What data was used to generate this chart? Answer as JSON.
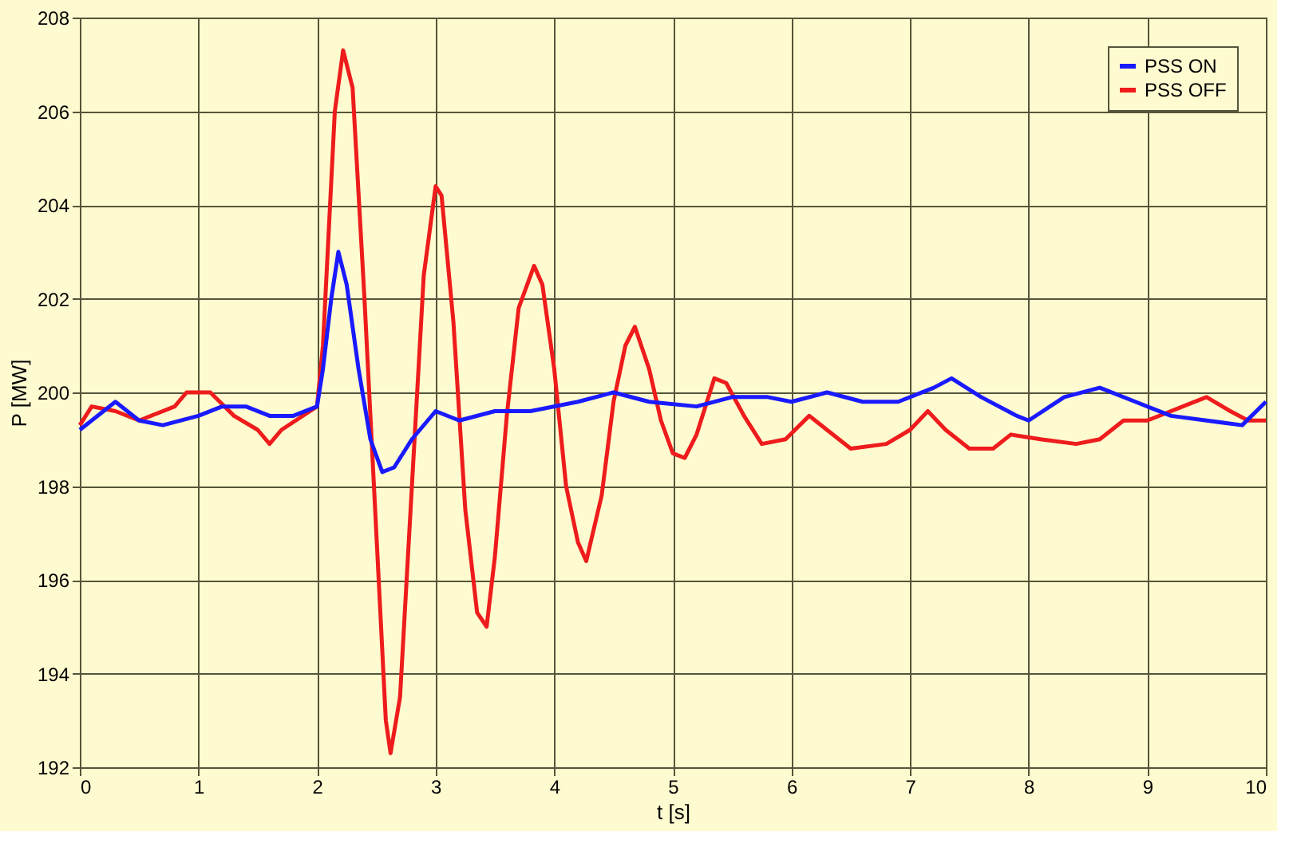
{
  "chart_data": {
    "type": "line",
    "xlabel": "t [s]",
    "ylabel": "P  [MW]",
    "xlim": [
      0,
      10
    ],
    "xticks": [
      0,
      1,
      2,
      3,
      4,
      5,
      6,
      7,
      8,
      9,
      10
    ],
    "ylim": [
      192,
      208
    ],
    "yticks": [
      192,
      194,
      196,
      198,
      200,
      202,
      204,
      206,
      208
    ],
    "grid": true,
    "legend": "top right",
    "line_style": "solid",
    "series": [
      {
        "name": "PSS ON",
        "color": "#1a1aff",
        "x": [
          0,
          0.2,
          0.3,
          0.5,
          0.7,
          1.0,
          1.2,
          1.4,
          1.6,
          1.8,
          2.0,
          2.05,
          2.12,
          2.18,
          2.25,
          2.35,
          2.45,
          2.55,
          2.65,
          2.8,
          3.0,
          3.2,
          3.5,
          3.8,
          4.2,
          4.5,
          4.8,
          5.2,
          5.5,
          5.8,
          6.0,
          6.3,
          6.6,
          6.9,
          7.2,
          7.35,
          7.6,
          7.9,
          8.0,
          8.3,
          8.6,
          8.9,
          9.2,
          9.5,
          9.8,
          10
        ],
        "values": [
          199.2,
          199.6,
          199.8,
          199.4,
          199.3,
          199.5,
          199.7,
          199.7,
          199.5,
          199.5,
          199.7,
          200.5,
          202.0,
          203.0,
          202.3,
          200.5,
          199.0,
          198.3,
          198.4,
          199.0,
          199.6,
          199.4,
          199.6,
          199.6,
          199.8,
          200.0,
          199.8,
          199.7,
          199.9,
          199.9,
          199.8,
          200.0,
          199.8,
          199.8,
          200.1,
          200.3,
          199.9,
          199.5,
          199.4,
          199.9,
          200.1,
          199.8,
          199.5,
          199.4,
          199.3,
          199.8
        ]
      },
      {
        "name": "PSS OFF",
        "color": "#ee1c1c",
        "x": [
          0,
          0.1,
          0.3,
          0.5,
          0.8,
          0.9,
          1.1,
          1.3,
          1.5,
          1.6,
          1.7,
          2.0,
          2.05,
          2.1,
          2.15,
          2.22,
          2.3,
          2.4,
          2.5,
          2.58,
          2.62,
          2.7,
          2.8,
          2.9,
          3.0,
          3.05,
          3.15,
          3.25,
          3.35,
          3.43,
          3.5,
          3.6,
          3.7,
          3.83,
          3.9,
          4.0,
          4.1,
          4.2,
          4.27,
          4.4,
          4.5,
          4.6,
          4.68,
          4.8,
          4.9,
          5.0,
          5.1,
          5.2,
          5.35,
          5.45,
          5.6,
          5.75,
          5.95,
          6.15,
          6.3,
          6.5,
          6.8,
          7.0,
          7.15,
          7.3,
          7.5,
          7.7,
          7.85,
          8.1,
          8.4,
          8.6,
          8.8,
          9.0,
          9.3,
          9.5,
          9.7,
          9.85,
          10
        ],
        "values": [
          199.3,
          199.7,
          199.6,
          199.4,
          199.7,
          200.0,
          200.0,
          199.5,
          199.2,
          198.9,
          199.2,
          199.7,
          201.0,
          203.5,
          206.0,
          207.3,
          206.5,
          202.0,
          197.0,
          193.0,
          192.3,
          193.5,
          198.0,
          202.5,
          204.4,
          204.2,
          201.5,
          197.5,
          195.3,
          195.0,
          196.5,
          199.5,
          201.8,
          202.7,
          202.3,
          200.5,
          198.0,
          196.8,
          196.4,
          197.8,
          199.8,
          201.0,
          201.4,
          200.5,
          199.4,
          198.7,
          198.6,
          199.1,
          200.3,
          200.2,
          199.5,
          198.9,
          199.0,
          199.5,
          199.2,
          198.8,
          198.9,
          199.2,
          199.6,
          199.2,
          198.8,
          198.8,
          199.1,
          199.0,
          198.9,
          199.0,
          199.4,
          199.4,
          199.7,
          199.9,
          199.6,
          199.4,
          199.4
        ]
      }
    ]
  }
}
